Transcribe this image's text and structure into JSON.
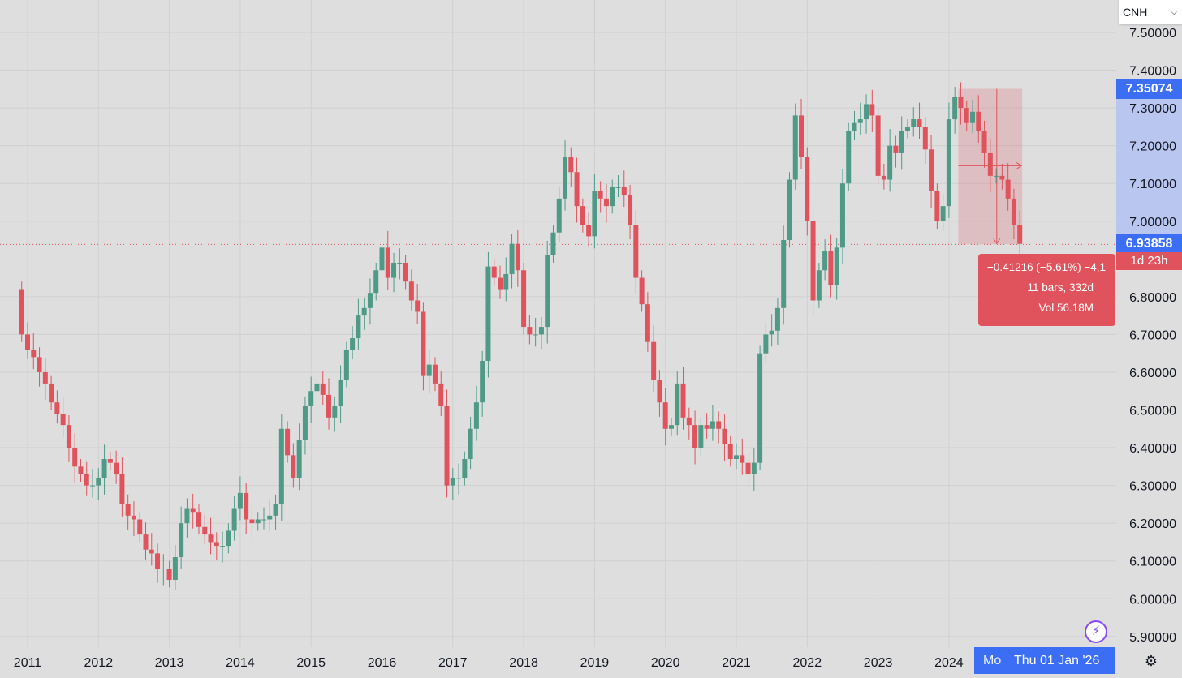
{
  "symbol": {
    "label": "CNH",
    "chevron_icon": "chevron-down-icon"
  },
  "colors": {
    "up": "#4e9a86",
    "down": "#e0535c",
    "accent": "#3b6ef5",
    "measure_fill": "#e0535c",
    "alert": "#8a4af3"
  },
  "price_badges": {
    "measure_start": "7.35074",
    "last": "6.93858",
    "countdown": "1d 23h"
  },
  "measure": {
    "change": "−0.41216 (−5.61%) −4,1",
    "bars": "11 bars, 332d",
    "volume": "Vol 56.18M",
    "start_price": 7.35074,
    "end_price": 6.93858
  },
  "crosshair_date": {
    "previous": "Mo",
    "current": "Thu 01 Jan '26"
  },
  "icons": {
    "alert": "lightning-alert-icon",
    "settings": "gear-icon"
  },
  "chart_data": {
    "type": "candlestick",
    "interval": "1M",
    "x_labels": [
      "2011",
      "2012",
      "2013",
      "2014",
      "2015",
      "2016",
      "2017",
      "2018",
      "2019",
      "2020",
      "2021",
      "2022",
      "2023",
      "2024"
    ],
    "y_ticks": [
      "7.50000",
      "7.40000",
      "7.30000",
      "7.20000",
      "7.10000",
      "7.00000",
      "6.80000",
      "6.70000",
      "6.60000",
      "6.50000",
      "6.40000",
      "6.30000",
      "6.20000",
      "6.10000",
      "6.00000",
      "5.90000"
    ],
    "y_range": [
      5.89,
      7.52
    ],
    "grid": true,
    "last_price_line": 6.93858,
    "closes": [
      6.7,
      6.66,
      6.64,
      6.6,
      6.57,
      6.52,
      6.49,
      6.46,
      6.4,
      6.35,
      6.33,
      6.3,
      6.3,
      6.32,
      6.37,
      6.36,
      6.33,
      6.25,
      6.22,
      6.21,
      6.17,
      6.13,
      6.12,
      6.08,
      6.08,
      6.05,
      6.11,
      6.2,
      6.24,
      6.23,
      6.19,
      6.17,
      6.15,
      6.14,
      6.14,
      6.18,
      6.24,
      6.28,
      6.21,
      6.2,
      6.21,
      6.21,
      6.22,
      6.25,
      6.45,
      6.38,
      6.32,
      6.42,
      6.51,
      6.55,
      6.57,
      6.54,
      6.48,
      6.51,
      6.58,
      6.66,
      6.69,
      6.75,
      6.77,
      6.81,
      6.87,
      6.93,
      6.85,
      6.89,
      6.89,
      6.84,
      6.79,
      6.76,
      6.59,
      6.62,
      6.57,
      6.51,
      6.3,
      6.32,
      6.32,
      6.37,
      6.45,
      6.52,
      6.63,
      6.88,
      6.85,
      6.82,
      6.86,
      6.94,
      6.87,
      6.72,
      6.7,
      6.7,
      6.72,
      6.91,
      6.97,
      7.06,
      7.17,
      7.13,
      7.04,
      6.99,
      6.96,
      7.08,
      7.06,
      7.04,
      7.09,
      7.09,
      7.07,
      6.99,
      6.85,
      6.78,
      6.68,
      6.58,
      6.52,
      6.45,
      6.46,
      6.57,
      6.48,
      6.46,
      6.4,
      6.46,
      6.45,
      6.47,
      6.45,
      6.41,
      6.37,
      6.38,
      6.36,
      6.33,
      6.36,
      6.65,
      6.7,
      6.71,
      6.77,
      6.95,
      7.11,
      7.28,
      7.17,
      7.0,
      6.79,
      6.87,
      6.92,
      6.83,
      6.93,
      7.1,
      7.24,
      7.26,
      7.27,
      7.31,
      7.28,
      7.12,
      7.11,
      7.2,
      7.18,
      7.24,
      7.25,
      7.27,
      7.25,
      7.19,
      7.08,
      7.0,
      7.04,
      7.27,
      7.33,
      7.3,
      7.26,
      7.29,
      7.24,
      7.18,
      7.12,
      7.12,
      7.11,
      7.06,
      6.99,
      6.94
    ]
  }
}
